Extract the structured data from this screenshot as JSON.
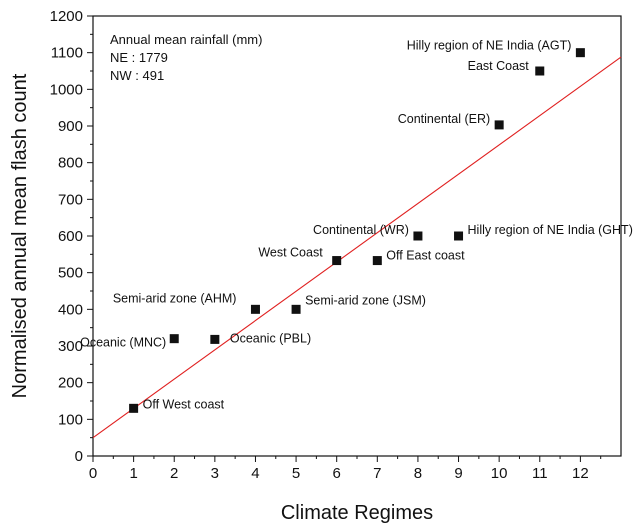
{
  "chart_data": {
    "type": "scatter",
    "title": "",
    "xlabel": "Climate Regimes",
    "ylabel": "Normalised annual mean flash count",
    "xlim": [
      0,
      13
    ],
    "ylim": [
      0,
      1200
    ],
    "xticks": [
      0,
      1,
      2,
      3,
      4,
      5,
      6,
      7,
      8,
      9,
      10,
      11,
      12
    ],
    "yticks": [
      0,
      100,
      200,
      300,
      400,
      500,
      600,
      700,
      800,
      900,
      1000,
      1100,
      1200
    ],
    "grid": false,
    "legend": "none",
    "marker_color": "#111111",
    "fit_line_color": "#e02020",
    "points": [
      {
        "x": 1,
        "y": 130,
        "label": "Off West coast"
      },
      {
        "x": 2,
        "y": 320,
        "label": "Oceanic (MNC)"
      },
      {
        "x": 3,
        "y": 318,
        "label": "Oceanic (PBL)"
      },
      {
        "x": 4,
        "y": 400,
        "label": "Semi-arid zone (AHM)"
      },
      {
        "x": 5,
        "y": 400,
        "label": "Semi-arid zone (JSM)"
      },
      {
        "x": 6,
        "y": 533,
        "label": "West Coast"
      },
      {
        "x": 7,
        "y": 533,
        "label": "Off East coast"
      },
      {
        "x": 8,
        "y": 600,
        "label": "Continental (WR)"
      },
      {
        "x": 9,
        "y": 600,
        "label": "Hilly region of NE India (GHT)"
      },
      {
        "x": 10,
        "y": 903,
        "label": "Continental (ER)"
      },
      {
        "x": 11,
        "y": 1050,
        "label": "East Coast"
      },
      {
        "x": 12,
        "y": 1100,
        "label": "Hilly region of NE India (AGT)"
      }
    ],
    "fit_line": {
      "x": [
        0,
        13
      ],
      "y": [
        50,
        1088
      ]
    },
    "annotation": [
      "Annual mean rainfall (mm)",
      "NE :  1779",
      "NW : 491"
    ]
  }
}
